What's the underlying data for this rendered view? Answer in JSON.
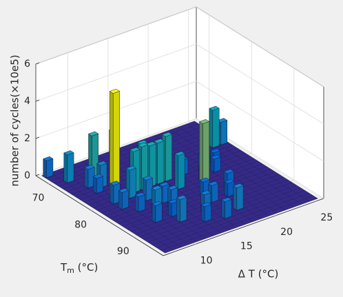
{
  "chart_data": {
    "type": "bar3d",
    "zlabel": "number of cycles(×10e5)",
    "xlabel": "Δ T (°C)",
    "ylabel": {
      "symbol": "T",
      "subscript": "m",
      "unit": " (°C)"
    },
    "xlim": [
      6,
      26
    ],
    "xticks": [
      10,
      15,
      20,
      25
    ],
    "ylim": [
      67,
      97
    ],
    "yticks": [
      70,
      80,
      90
    ],
    "zlim": [
      0,
      6
    ],
    "zticks": [
      0,
      2,
      4,
      6
    ],
    "colormap": "parula",
    "grid": true,
    "bars": {
      "dT": [
        7,
        8,
        9,
        9,
        10,
        10,
        11,
        9,
        9,
        10,
        11,
        12,
        13,
        14,
        15,
        14,
        10,
        16,
        18,
        12,
        20,
        21,
        22,
        18,
        19,
        24,
        25,
        20,
        17,
        15,
        14,
        16,
        18,
        13,
        12,
        11,
        10,
        17,
        19,
        12,
        16,
        13
      ],
      "Tm": [
        68,
        71,
        74,
        76,
        75,
        73,
        76,
        80,
        82,
        84,
        80,
        79,
        79,
        79,
        79,
        77,
        78,
        82,
        84,
        90,
        80,
        81,
        79,
        79,
        82,
        75,
        75,
        86,
        88,
        90,
        92,
        93,
        92,
        86,
        88,
        86,
        88,
        86,
        88,
        82,
        79,
        84
      ],
      "values": [
        0.9,
        1.5,
        1.0,
        0.8,
        1.2,
        2.5,
        3.0,
        1.0,
        0.9,
        0.8,
        1.5,
        2.2,
        2.3,
        2.2,
        2.2,
        2.0,
        5.5,
        1.8,
        3.5,
        1.2,
        0.9,
        0.7,
        0.6,
        0.8,
        0.7,
        2.0,
        1.2,
        0.8,
        0.9,
        1.0,
        0.8,
        0.9,
        1.2,
        1.0,
        0.7,
        1.3,
        0.9,
        0.8,
        0.7,
        1.1,
        2.4,
        0.9
      ]
    }
  }
}
